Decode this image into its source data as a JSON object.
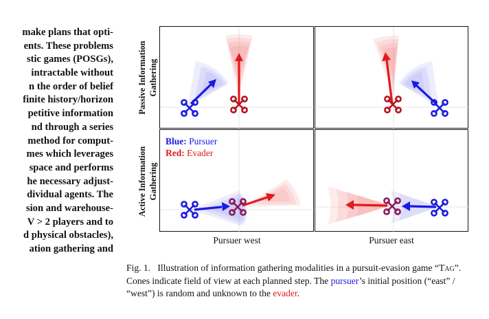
{
  "left_text": {
    "lines": [
      "make plans that opti-",
      "ents. These problems",
      "stic games (POSGs),",
      "intractable without",
      "n the order of belief",
      "finite history/horizon",
      "petitive information",
      "nd through a series",
      "method for comput-",
      "mes which leverages",
      "space and performs",
      "he necessary adjust-",
      "dividual agents. The",
      "sion and warehouse-",
      "V > 2 players and to",
      "d physical obstacles),",
      "ation gathering and"
    ]
  },
  "figure": {
    "row_labels": {
      "passive_line1": "Passive Information",
      "passive_line2": "Gathering",
      "active_line1": "Active Information",
      "active_line2": "Gathering"
    },
    "col_labels": {
      "west": "Pursuer west",
      "east": "Pursuer east"
    },
    "legend": {
      "blue_key": "Blue:",
      "blue_value": "Pursuer",
      "red_key": "Red:",
      "red_value": "Evader"
    },
    "colors": {
      "pursuer": "#1a1ae0",
      "evader": "#e01a1a",
      "pursuer_cone": "#6a6af0",
      "evader_cone": "#f07070"
    }
  },
  "caption": {
    "fig_label": "Fig. 1.",
    "text1": "Illustration of information gathering modalities in a pursuit-evasion game “",
    "tag": "Tag",
    "text2": "”. Cones indicate field of view at each planned step. The ",
    "pursuer": "pursuer",
    "text3": "’s initial position (“east” / “west”) is random and unknown to the ",
    "evader": "evader",
    "text4": "."
  }
}
